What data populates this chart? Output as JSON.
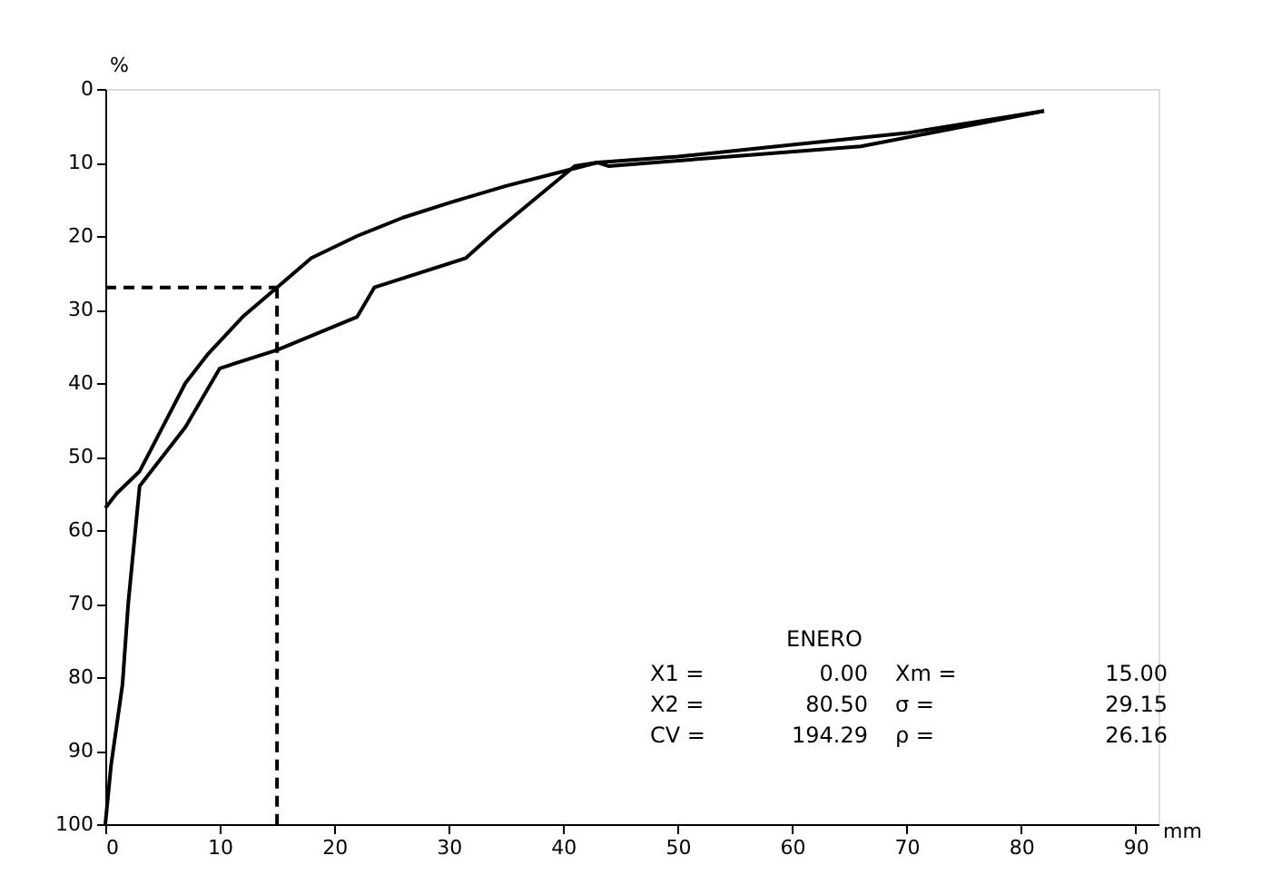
{
  "chart_data": {
    "type": "line",
    "xlabel": "mm",
    "ylabel": "%",
    "series": [
      {
        "color": "#000000",
        "x": [
          0,
          1,
          3,
          5,
          7,
          9,
          12,
          15,
          18,
          22,
          26,
          30,
          35,
          40,
          43,
          50,
          60,
          70,
          82
        ],
        "values": [
          57,
          55,
          52,
          46,
          40,
          36,
          31,
          27,
          23,
          20,
          17.5,
          15.5,
          13.2,
          11.2,
          10,
          9.2,
          7.6,
          6,
          3
        ]
      },
      {
        "color": "#000000",
        "x": [
          0,
          0.5,
          1.5,
          2,
          3,
          7,
          10,
          15,
          22,
          23.5,
          31.5,
          34,
          41,
          43,
          44,
          48,
          66,
          82
        ],
        "values": [
          100,
          92,
          81,
          70,
          54,
          46,
          38,
          35.5,
          31,
          27,
          23,
          19.5,
          10.5,
          10,
          10.5,
          10,
          7.8,
          3
        ]
      }
    ],
    "xlim": [
      0,
      92
    ],
    "xticks": [
      0,
      10,
      20,
      30,
      40,
      50,
      60,
      70,
      80,
      90
    ],
    "ylim": [
      100,
      0
    ],
    "yticks": [
      0,
      10,
      20,
      30,
      40,
      50,
      60,
      70,
      80,
      90,
      100
    ],
    "ref_lines": [
      {
        "axis": "y",
        "value": 27,
        "line_style": "dashed",
        "color": "#000000"
      },
      {
        "axis": "x",
        "value": 15,
        "line_style": "dashed",
        "color": "#000000"
      }
    ],
    "annotations": [
      "ENERO",
      "X1 =",
      "0.00",
      "Xm =",
      "15.00",
      "X2 =",
      "80.50",
      "σ =",
      "29.15",
      "CV =",
      "194.29",
      "ρ =",
      "26.16"
    ],
    "grid": false,
    "marker": "none",
    "line_style": "solid"
  }
}
